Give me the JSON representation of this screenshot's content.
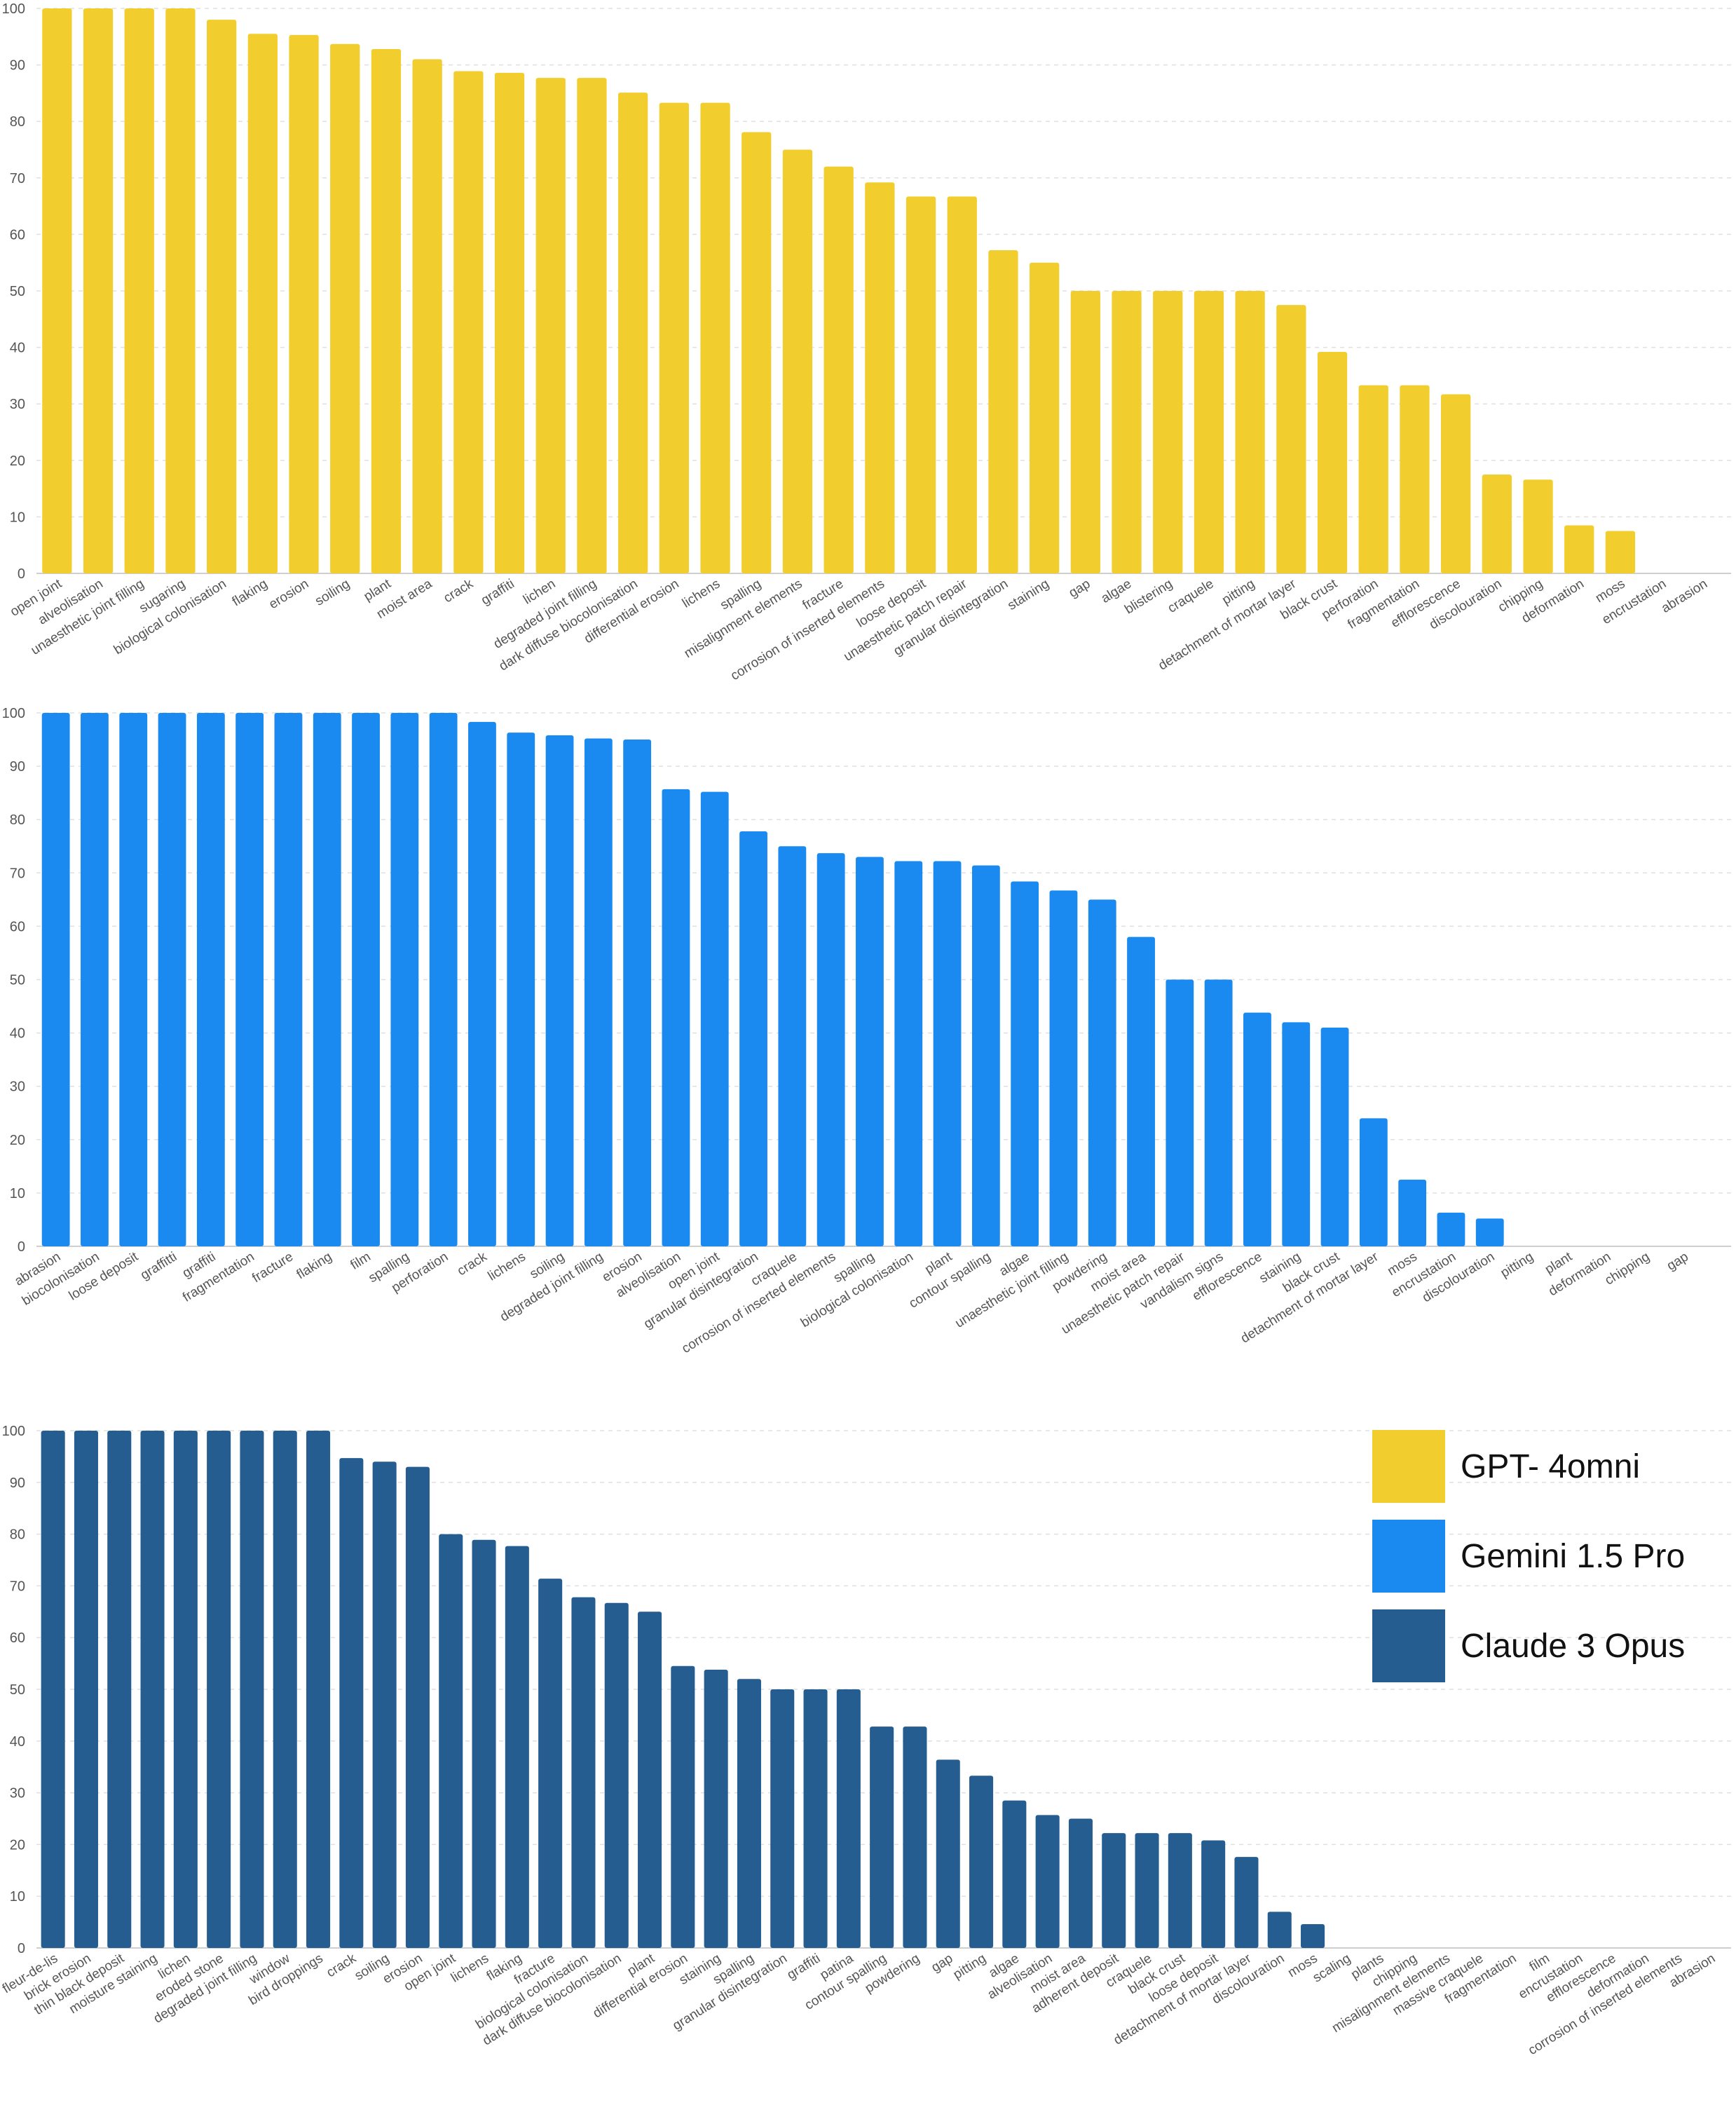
{
  "chart_data": [
    {
      "type": "bar",
      "series_name": "GPT- 4omni",
      "color": "#F2CD2E",
      "ylim": [
        0,
        100
      ],
      "yticks": [
        0,
        10,
        20,
        30,
        40,
        50,
        60,
        70,
        80,
        90,
        100
      ],
      "grid": true,
      "categories": [
        "open joint",
        "alveolisation",
        "unaesthetic joint filling",
        "sugaring",
        "biological colonisation",
        "flaking",
        "erosion",
        "soiling",
        "plant",
        "moist area",
        "crack",
        "graffiti",
        "lichen",
        "degraded joint filling",
        "dark diffuse biocolonisation",
        "differential erosion",
        "lichens",
        "spalling",
        "misalignment elements",
        "fracture",
        "corrosion of inserted elements",
        "loose deposit",
        "unaesthetic patch repair",
        "granular disintegration",
        "staining",
        "gap",
        "algae",
        "blistering",
        "craquele",
        "pitting",
        "detachment of mortar layer",
        "black crust",
        "perforation",
        "fragmentation",
        "efflorescence",
        "discolouration",
        "chipping",
        "deformation",
        "moss",
        "encrustation",
        "abrasion"
      ],
      "values": [
        100,
        100,
        100,
        100,
        98,
        95.5,
        95.3,
        93.7,
        92.8,
        91,
        88.9,
        88.6,
        87.7,
        87.7,
        85.1,
        83.3,
        83.3,
        78.1,
        75,
        72,
        69.2,
        66.7,
        66.7,
        57.2,
        55,
        50,
        50,
        50,
        50,
        50,
        47.5,
        39.2,
        33.3,
        33.3,
        31.7,
        17.5,
        16.6,
        8.5,
        7.5,
        0,
        0
      ]
    },
    {
      "type": "bar",
      "series_name": "Gemini 1.5 Pro",
      "color": "#1A8AF0",
      "ylim": [
        0,
        100
      ],
      "yticks": [
        0,
        10,
        20,
        30,
        40,
        50,
        60,
        70,
        80,
        90,
        100
      ],
      "grid": true,
      "categories": [
        "abrasion",
        "biocolonisation",
        "loose deposit",
        "graffitti",
        "graffiti",
        "fragmentation",
        "fracture",
        "flaking",
        "film",
        "spalling",
        "perforation",
        "crack",
        "lichens",
        "soiling",
        "degraded joint filling",
        "erosion",
        "alveolisation",
        "open joint",
        "granular disintegration",
        "craquele",
        "corrosion of inserted elements",
        "spalling",
        "biological colonisation",
        "plant",
        "contour spalling",
        "algae",
        "unaesthetic joint filling",
        "powdering",
        "moist area",
        "unaesthetic patch repair",
        "vandalism signs",
        "efflorescence",
        "staining",
        "black crust",
        "detachment of mortar layer",
        "moss",
        "encrustation",
        "discolouration",
        "pitting",
        "plant",
        "deformation",
        "chipping",
        "gap"
      ],
      "values": [
        100,
        100,
        100,
        100,
        100,
        100,
        100,
        100,
        100,
        100,
        100,
        98.3,
        96.3,
        95.8,
        95.2,
        95,
        85.7,
        85.2,
        77.8,
        75,
        73.7,
        73,
        72.2,
        72.2,
        71.4,
        68.4,
        66.7,
        65,
        58,
        50,
        50,
        43.8,
        42,
        41,
        24,
        12.5,
        6.3,
        5.2,
        0,
        0,
        0,
        0,
        0
      ]
    },
    {
      "type": "bar",
      "series_name": "Claude 3 Opus",
      "color": "#255D91",
      "ylim": [
        0,
        100
      ],
      "yticks": [
        0,
        10,
        20,
        30,
        40,
        50,
        60,
        70,
        80,
        90,
        100
      ],
      "grid": true,
      "categories": [
        "fleur-de-lis",
        "brick erosion",
        "thin black deposit",
        "moisture staining",
        "lichen",
        "eroded stone",
        "degraded joint filling",
        "window",
        "bird droppings",
        "crack",
        "soiling",
        "erosion",
        "open joint",
        "lichens",
        "flaking",
        "fracture",
        "biological colonisation",
        "dark diffuse biocolonisation",
        "plant",
        "differential erosion",
        "staining",
        "spalling",
        "granular disintegration",
        "graffiti",
        "patina",
        "contour spalling",
        "powdering",
        "gap",
        "pitting",
        "algae",
        "alveolisation",
        "moist area",
        "adherent deposit",
        "craquele",
        "black crust",
        "loose deposit",
        "detachment of mortar layer",
        "discolouration",
        "moss",
        "scaling",
        "plants",
        "chipping",
        "misalignment elements",
        "massive craquele",
        "fragmentation",
        "film",
        "encrustation",
        "efflorescence",
        "deformation",
        "corrosion of inserted elements",
        "abrasion"
      ],
      "values": [
        100,
        100,
        100,
        100,
        100,
        100,
        100,
        100,
        100,
        94.7,
        94,
        93,
        80,
        78.9,
        77.7,
        71.4,
        67.8,
        66.7,
        65,
        54.5,
        53.8,
        52,
        50,
        50,
        50,
        42.8,
        42.8,
        36.4,
        33.3,
        28.5,
        25.7,
        25,
        22.2,
        22.2,
        22.2,
        20.8,
        17.6,
        7,
        4.6,
        0,
        0,
        0,
        0,
        0,
        0,
        0,
        0,
        0,
        0,
        0,
        0
      ]
    }
  ],
  "legend": [
    {
      "label": "GPT- 4omni",
      "color": "#F2CD2E"
    },
    {
      "label": "Gemini 1.5 Pro",
      "color": "#1A8AF0"
    },
    {
      "label": "Claude 3 Opus",
      "color": "#255D91"
    }
  ]
}
